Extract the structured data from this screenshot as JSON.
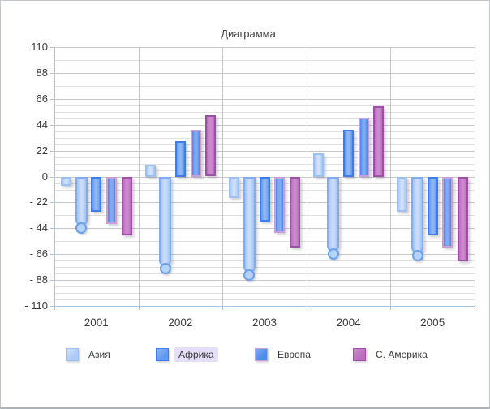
{
  "window": {
    "background": "#ffffff",
    "border_color": "#c3c7cc"
  },
  "chart_data": {
    "type": "bar",
    "title": "Диаграмма",
    "categories": [
      "2001",
      "2002",
      "2003",
      "2004",
      "2005"
    ],
    "series": [
      {
        "name": "Азия",
        "in_legend": true,
        "shape": "bar",
        "selected": false,
        "fill": "#abc9f5",
        "border": "#9dbff2",
        "inner": "#cfe0fa",
        "values": [
          -8,
          10,
          -18,
          20,
          -30
        ]
      },
      {
        "name": "",
        "in_legend": false,
        "shape": "capsule",
        "selected": false,
        "fill": "#9fc3f3",
        "border": "#82acee",
        "inner": "#c8dbf9",
        "circle_fill": "#b6d3f8",
        "circle_border": "#68a0ea",
        "values": [
          -44,
          -78,
          -84,
          -66,
          -67
        ]
      },
      {
        "name": "Африка",
        "in_legend": true,
        "shape": "bar",
        "selected": true,
        "fill": "#5e97ef",
        "border": "#3f7ce9",
        "inner": "#90b6f4",
        "label_highlight": "#e4def6",
        "values": [
          -30,
          30,
          -38,
          40,
          -50
        ]
      },
      {
        "name": "Европа",
        "in_legend": true,
        "shape": "bar",
        "selected": false,
        "fill": "#4d88ec",
        "border": "#c79fd9",
        "inner": "#7fabf2",
        "values": [
          -40,
          40,
          -48,
          50,
          -60
        ]
      },
      {
        "name": "С. Америка",
        "in_legend": true,
        "shape": "bar",
        "selected": false,
        "fill": "#b96ebc",
        "border": "#9e4fa7",
        "inner": "#cc8ace",
        "values": [
          -50,
          52,
          -60,
          60,
          -72
        ]
      }
    ],
    "y_axis": {
      "min": -110,
      "max": 110,
      "major": 22,
      "minor": 5.5,
      "ticks": [
        110,
        88,
        66,
        44,
        22,
        0,
        -22,
        -44,
        -66,
        -88,
        -110
      ]
    },
    "y_tick_labels": [
      "110",
      "88",
      "66",
      "44",
      "22",
      "0",
      "- 22",
      "- 44",
      "- 66",
      "- 88",
      "- 110"
    ],
    "grid": {
      "major_color": "#c8c8c8",
      "minor_color": "#e1e1e1",
      "vertical_color": "#c4c4c4",
      "axis_line_color": "#aac5e4",
      "text_color": "#3b3b3b"
    },
    "legend_position": "bottom"
  }
}
